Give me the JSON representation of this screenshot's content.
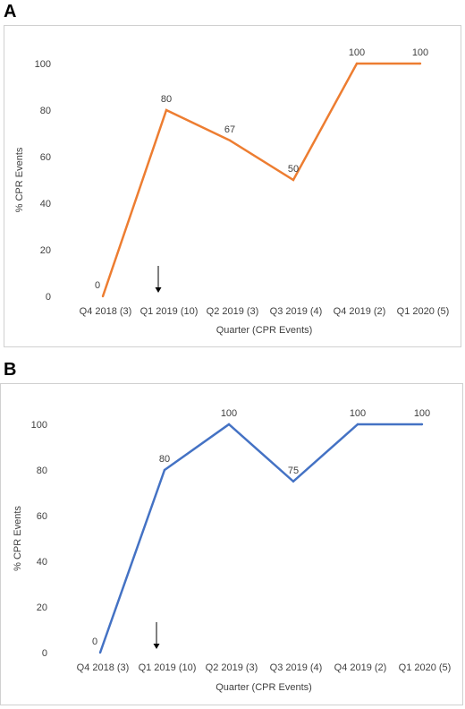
{
  "panels": [
    {
      "letter": "A"
    },
    {
      "letter": "B"
    }
  ],
  "chart_data": [
    {
      "type": "line",
      "panel": "A",
      "categories": [
        "Q4 2018 (3)",
        "Q1 2019 (10)",
        "Q2 2019 (3)",
        "Q3 2019 (4)",
        "Q4 2019 (2)",
        "Q1 2020 (5)"
      ],
      "series": [
        {
          "values": [
            0,
            80,
            67,
            50,
            100,
            100
          ],
          "color": "#ED7D31"
        }
      ],
      "data_labels": [
        "0",
        "80",
        "67",
        "50",
        "100",
        "100"
      ],
      "xlabel": "Quarter (CPR Events)",
      "ylabel": "% CPR Events",
      "ylim": [
        0,
        100
      ],
      "yticks": [
        0,
        20,
        40,
        60,
        80,
        100
      ],
      "grid": false,
      "annotation": {
        "type": "down-arrow",
        "category": "Q1 2019 (10)"
      }
    },
    {
      "type": "line",
      "panel": "B",
      "categories": [
        "Q4 2018 (3)",
        "Q1 2019 (10)",
        "Q2 2019 (3)",
        "Q3 2019 (4)",
        "Q4 2019 (2)",
        "Q1 2020 (5)"
      ],
      "series": [
        {
          "values": [
            0,
            80,
            100,
            75,
            100,
            100
          ],
          "color": "#4472C4"
        }
      ],
      "data_labels": [
        "0",
        "80",
        "100",
        "75",
        "100",
        "100"
      ],
      "xlabel": "Quarter (CPR Events)",
      "ylabel": "% CPR Events",
      "ylim": [
        0,
        100
      ],
      "yticks": [
        0,
        20,
        40,
        60,
        80,
        100
      ],
      "grid": false,
      "annotation": {
        "type": "down-arrow",
        "category": "Q1 2019 (10)"
      }
    }
  ]
}
